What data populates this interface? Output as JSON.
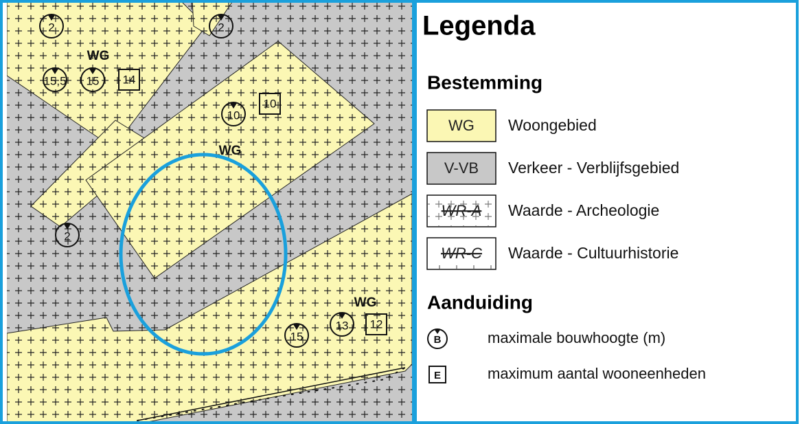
{
  "map": {
    "labels": [
      {
        "text": "2",
        "shape": "circle"
      },
      {
        "text": "2",
        "shape": "circle"
      },
      {
        "text": "WG",
        "shape": "text"
      },
      {
        "text": "15,5",
        "shape": "circle"
      },
      {
        "text": "15",
        "shape": "circle"
      },
      {
        "text": "14",
        "shape": "square"
      },
      {
        "text": "10",
        "shape": "circle"
      },
      {
        "text": "10",
        "shape": "square"
      },
      {
        "text": "WG",
        "shape": "text"
      },
      {
        "text": "2",
        "shape": "circle"
      },
      {
        "text": "WG",
        "shape": "text"
      },
      {
        "text": "15",
        "shape": "circle"
      },
      {
        "text": "13",
        "shape": "circle"
      },
      {
        "text": "12",
        "shape": "square"
      }
    ]
  },
  "legend": {
    "title": "Legenda",
    "bestemming": {
      "title": "Bestemming",
      "items": [
        {
          "code": "WG",
          "label": "Woongebied",
          "style": "yellow"
        },
        {
          "code": "V-VB",
          "label": "Verkeer - Verblijfsgebied",
          "style": "grey"
        },
        {
          "code": "WR-A",
          "label": "Waarde - Archeologie",
          "style": "crosses"
        },
        {
          "code": "WR-C",
          "label": "Waarde - Cultuurhistorie",
          "style": "dashes"
        }
      ]
    },
    "aanduiding": {
      "title": "Aanduiding",
      "items": [
        {
          "symbol": "B",
          "label": "maximale bouwhoogte (m)",
          "shape": "circle"
        },
        {
          "symbol": "E",
          "label": "maximum aantal wooneenheden",
          "shape": "square"
        }
      ]
    }
  }
}
